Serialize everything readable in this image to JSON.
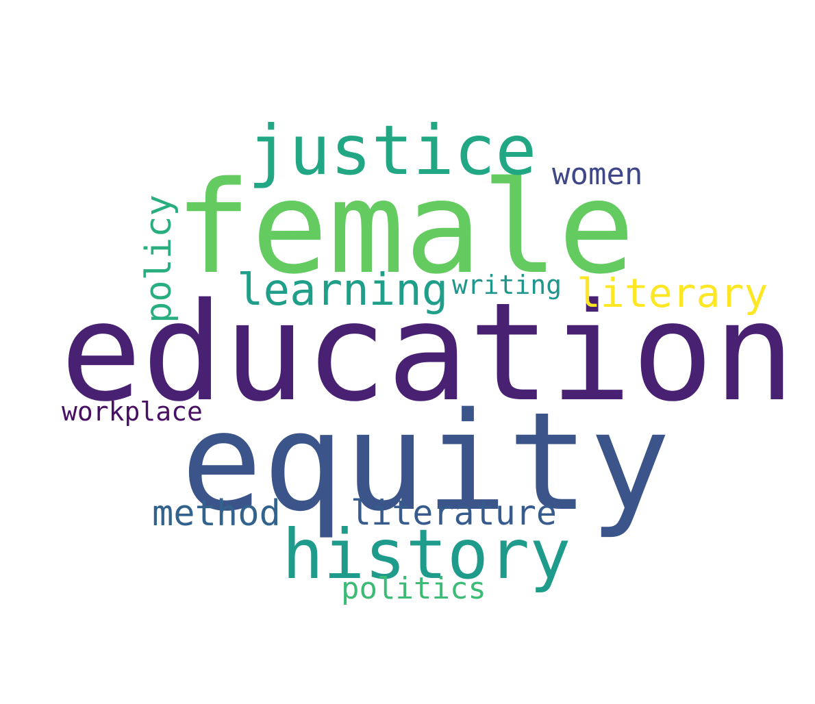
{
  "words": [
    {
      "text": "education",
      "color": "#482173"
    },
    {
      "text": "equity",
      "color": "#3b548a"
    },
    {
      "text": "female",
      "color": "#63cb5f"
    },
    {
      "text": "justice",
      "color": "#22a785"
    },
    {
      "text": "history",
      "color": "#1e9b8a"
    },
    {
      "text": "learning",
      "color": "#1f9e89"
    },
    {
      "text": "literary",
      "color": "#fde725"
    },
    {
      "text": "method",
      "color": "#33638d"
    },
    {
      "text": "literature",
      "color": "#375b8d"
    },
    {
      "text": "policy",
      "color": "#29af7f"
    },
    {
      "text": "women",
      "color": "#3f4788"
    },
    {
      "text": "politics",
      "color": "#3bbb75"
    },
    {
      "text": "writing",
      "color": "#1f958b"
    },
    {
      "text": "workplace",
      "color": "#471063"
    }
  ]
}
